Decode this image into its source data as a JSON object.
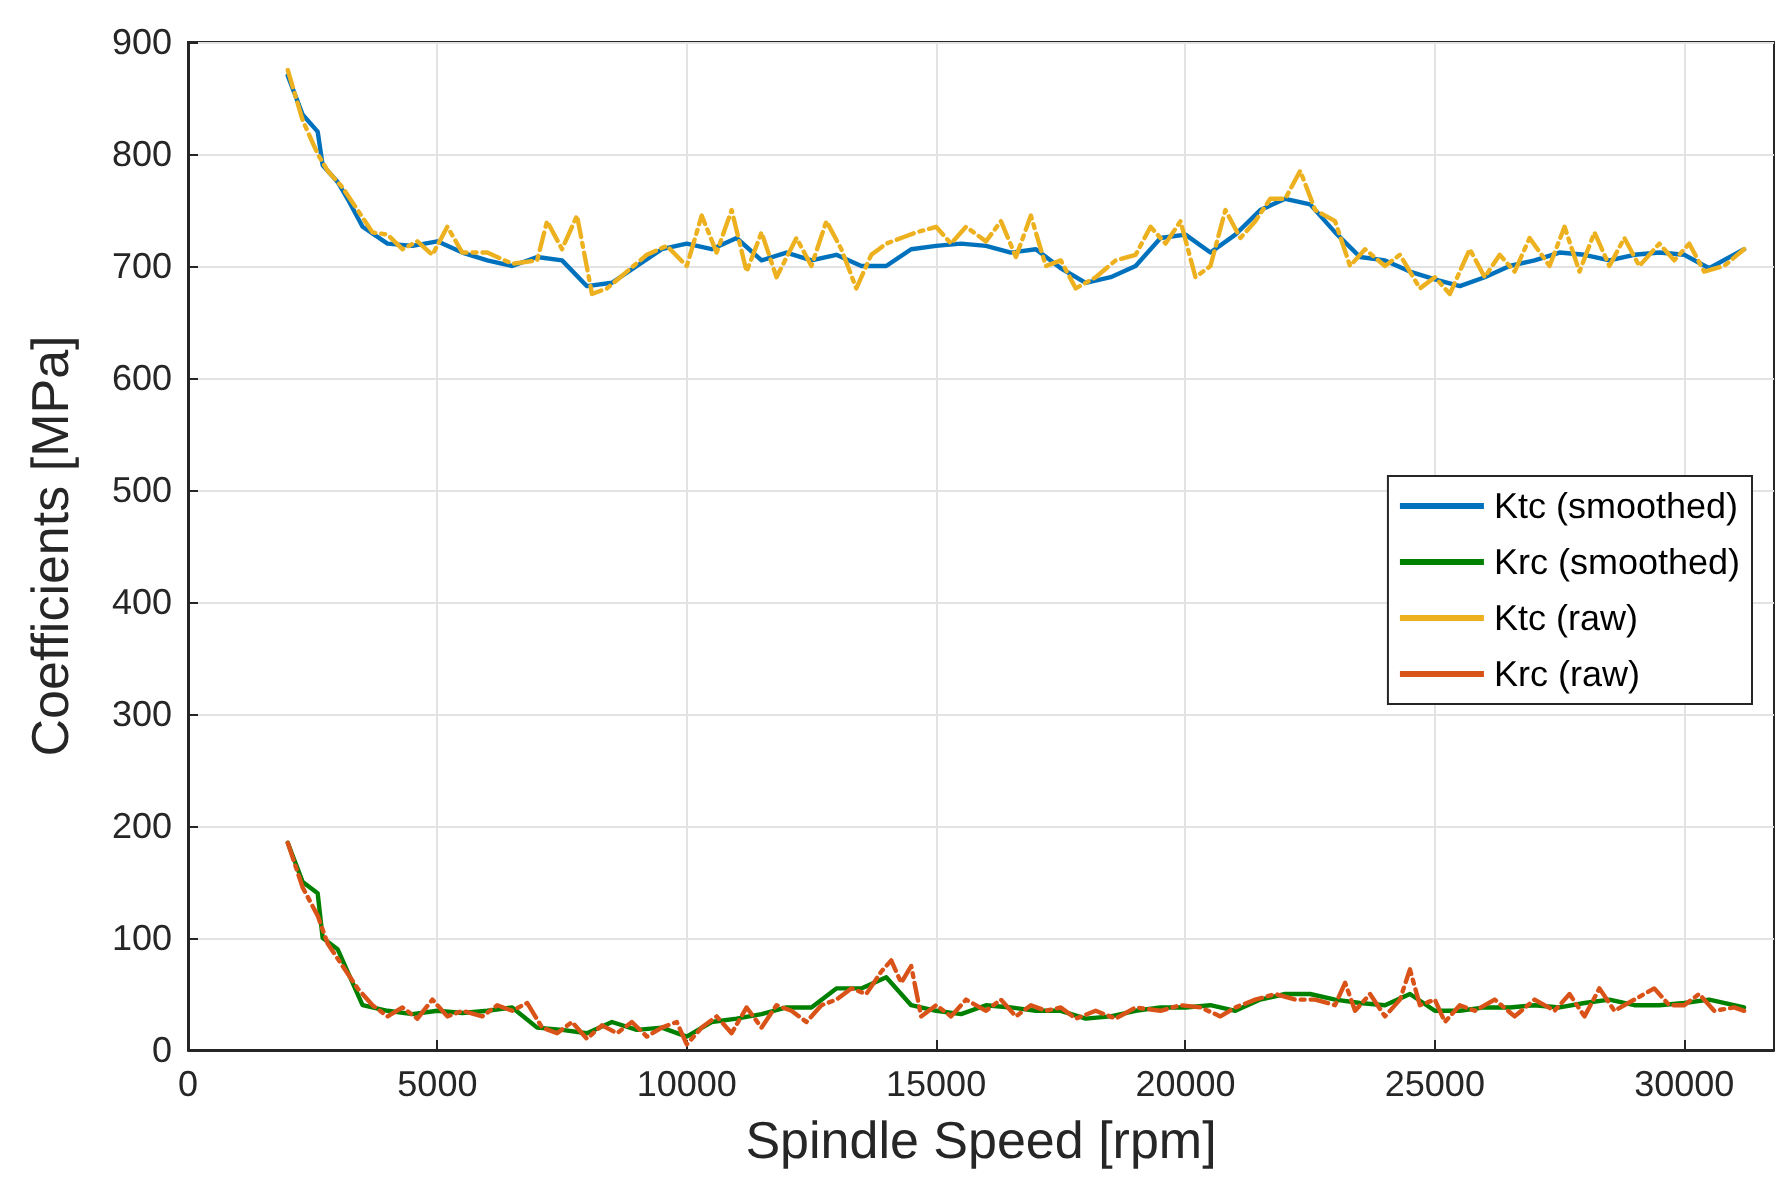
{
  "chart_data": {
    "type": "line",
    "xlabel": "Spindle Speed [rpm]",
    "ylabel": "Coefficients [MPa]",
    "xlim": [
      0,
      31800
    ],
    "xticks": [
      0,
      5000,
      10000,
      15000,
      20000,
      25000,
      30000
    ],
    "ylim": [
      0,
      900
    ],
    "yticks": [
      0,
      100,
      200,
      300,
      400,
      500,
      600,
      700,
      800,
      900
    ],
    "grid": true,
    "legend": "right",
    "marker": "none",
    "series": [
      {
        "name": "Ktc (smoothed)",
        "color": "#0072bd",
        "line_style": "solid",
        "x": [
          2000,
          2300,
          2600,
          2700,
          3000,
          3200,
          3500,
          4000,
          4500,
          5000,
          5500,
          6000,
          6500,
          7000,
          7500,
          8000,
          8500,
          9000,
          9500,
          10000,
          10500,
          11000,
          11500,
          12000,
          12500,
          13000,
          13500,
          14000,
          14500,
          15000,
          15500,
          16000,
          16500,
          17000,
          17500,
          18000,
          18500,
          19000,
          19500,
          20000,
          20500,
          21000,
          21500,
          22000,
          22500,
          23000,
          23500,
          24000,
          24500,
          25000,
          25500,
          26000,
          26500,
          27000,
          27500,
          28000,
          28500,
          29000,
          29500,
          30000,
          30500,
          31200
        ],
        "values": [
          870,
          835,
          820,
          790,
          775,
          760,
          735,
          720,
          718,
          722,
          712,
          705,
          700,
          708,
          705,
          682,
          685,
          700,
          715,
          720,
          715,
          725,
          705,
          712,
          705,
          710,
          700,
          700,
          715,
          718,
          720,
          718,
          712,
          715,
          698,
          685,
          690,
          700,
          725,
          728,
          712,
          728,
          750,
          760,
          755,
          730,
          708,
          705,
          695,
          688,
          682,
          690,
          700,
          705,
          712,
          710,
          705,
          710,
          712,
          710,
          698,
          715
        ]
      },
      {
        "name": "Krc (smoothed)",
        "color": "#008000",
        "line_style": "solid",
        "x": [
          2000,
          2300,
          2600,
          2700,
          3000,
          3200,
          3500,
          4000,
          4500,
          5000,
          5500,
          6000,
          6500,
          7000,
          7500,
          8000,
          8500,
          9000,
          9500,
          10000,
          10500,
          11000,
          11500,
          12000,
          12500,
          13000,
          13500,
          14000,
          14500,
          15000,
          15500,
          16000,
          16500,
          17000,
          17500,
          18000,
          18500,
          19000,
          19500,
          20000,
          20500,
          21000,
          21500,
          22000,
          22500,
          23000,
          23500,
          24000,
          24500,
          25000,
          25500,
          26000,
          26500,
          27000,
          27500,
          28000,
          28500,
          29000,
          29500,
          30000,
          30500,
          31200
        ],
        "values": [
          185,
          150,
          140,
          100,
          90,
          70,
          40,
          35,
          32,
          35,
          33,
          35,
          38,
          20,
          18,
          15,
          25,
          18,
          20,
          12,
          25,
          28,
          32,
          38,
          38,
          55,
          55,
          65,
          40,
          35,
          32,
          40,
          38,
          35,
          35,
          28,
          30,
          35,
          38,
          38,
          40,
          35,
          45,
          50,
          50,
          45,
          42,
          40,
          50,
          35,
          35,
          38,
          38,
          40,
          38,
          42,
          45,
          40,
          40,
          42,
          45,
          38
        ]
      },
      {
        "name": "Ktc (raw)",
        "color": "#edb120",
        "line_style": "dashed",
        "x": [
          2000,
          2300,
          2600,
          2800,
          3100,
          3400,
          3700,
          4000,
          4300,
          4600,
          4900,
          5200,
          5500,
          6000,
          6500,
          7000,
          7200,
          7500,
          7800,
          8100,
          8400,
          8800,
          9200,
          9600,
          10000,
          10300,
          10600,
          10900,
          11200,
          11500,
          11800,
          12200,
          12500,
          12800,
          13100,
          13400,
          13700,
          14000,
          14300,
          14600,
          15000,
          15300,
          15600,
          16000,
          16300,
          16600,
          16900,
          17200,
          17500,
          17800,
          18200,
          18600,
          19000,
          19300,
          19600,
          19900,
          20200,
          20500,
          20800,
          21100,
          21400,
          21700,
          22000,
          22300,
          22600,
          23000,
          23300,
          23600,
          24000,
          24300,
          24700,
          25000,
          25300,
          25700,
          26000,
          26300,
          26600,
          26900,
          27300,
          27600,
          27900,
          28200,
          28500,
          28800,
          29100,
          29500,
          29800,
          30100,
          30400,
          30800,
          31200
        ],
        "values": [
          875,
          830,
          800,
          785,
          770,
          750,
          730,
          728,
          715,
          722,
          710,
          735,
          712,
          712,
          702,
          705,
          740,
          715,
          745,
          675,
          680,
          695,
          710,
          718,
          700,
          745,
          712,
          750,
          695,
          730,
          690,
          725,
          700,
          740,
          715,
          680,
          710,
          720,
          725,
          730,
          735,
          720,
          735,
          722,
          740,
          708,
          745,
          700,
          705,
          680,
          690,
          705,
          710,
          735,
          720,
          740,
          690,
          700,
          750,
          725,
          740,
          760,
          760,
          785,
          750,
          740,
          700,
          715,
          700,
          710,
          680,
          690,
          675,
          715,
          690,
          710,
          695,
          725,
          700,
          735,
          695,
          730,
          700,
          725,
          700,
          720,
          705,
          720,
          695,
          700,
          715
        ]
      },
      {
        "name": "Krc (raw)",
        "color": "#d95319",
        "line_style": "dashed",
        "x": [
          2000,
          2300,
          2600,
          2800,
          3100,
          3400,
          3700,
          4000,
          4300,
          4600,
          4900,
          5200,
          5500,
          5900,
          6200,
          6500,
          6800,
          7100,
          7400,
          7700,
          8000,
          8300,
          8600,
          8900,
          9200,
          9500,
          9800,
          10000,
          10300,
          10600,
          10900,
          11200,
          11500,
          11800,
          12100,
          12400,
          12700,
          13000,
          13300,
          13600,
          13900,
          14100,
          14300,
          14500,
          14700,
          15000,
          15300,
          15600,
          16000,
          16300,
          16600,
          16900,
          17200,
          17500,
          17800,
          18200,
          18600,
          19000,
          19500,
          19900,
          20300,
          20700,
          21000,
          21400,
          21800,
          22200,
          22600,
          23000,
          23200,
          23400,
          23700,
          24000,
          24300,
          24500,
          24700,
          25000,
          25200,
          25500,
          25800,
          26200,
          26600,
          27000,
          27400,
          27700,
          28000,
          28300,
          28600,
          29000,
          29400,
          29700,
          30000,
          30300,
          30600,
          31000,
          31200
        ],
        "values": [
          185,
          145,
          120,
          95,
          75,
          55,
          40,
          30,
          38,
          28,
          45,
          30,
          35,
          30,
          40,
          35,
          42,
          20,
          15,
          25,
          10,
          22,
          15,
          25,
          12,
          20,
          25,
          5,
          20,
          30,
          15,
          38,
          20,
          40,
          35,
          25,
          40,
          45,
          55,
          50,
          70,
          80,
          60,
          75,
          30,
          40,
          30,
          45,
          35,
          45,
          30,
          40,
          35,
          38,
          28,
          35,
          28,
          38,
          35,
          40,
          38,
          30,
          38,
          45,
          50,
          45,
          45,
          40,
          60,
          35,
          50,
          30,
          45,
          72,
          40,
          45,
          25,
          40,
          35,
          45,
          30,
          45,
          35,
          50,
          30,
          55,
          35,
          45,
          55,
          40,
          40,
          50,
          35,
          38,
          35
        ]
      }
    ]
  }
}
